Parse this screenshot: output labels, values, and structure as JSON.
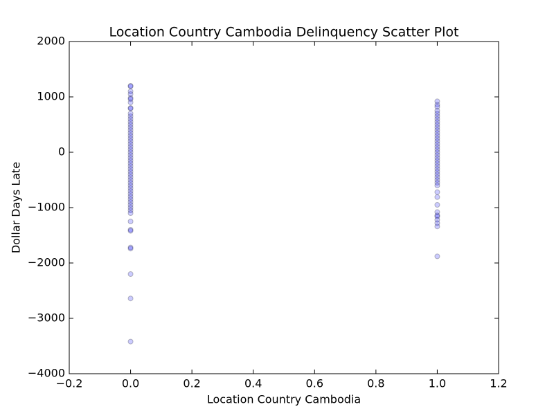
{
  "chart_data": {
    "type": "scatter",
    "title": "Location Country Cambodia Delinquency Scatter Plot",
    "xlabel": "Location Country Cambodia",
    "ylabel": "Dollar Days Late",
    "color": "#0000ff",
    "xlim": [
      -0.2,
      1.2
    ],
    "ylim": [
      -4000,
      2000
    ],
    "xticks": [
      {
        "value": -0.2,
        "label": "−0.2"
      },
      {
        "value": 0,
        "label": "0.0"
      },
      {
        "value": 0.2,
        "label": "0.2"
      },
      {
        "value": 0.4,
        "label": "0.4"
      },
      {
        "value": 0.6,
        "label": "0.6"
      },
      {
        "value": 0.8,
        "label": "0.8"
      },
      {
        "value": 1,
        "label": "1.0"
      },
      {
        "value": 1.2,
        "label": "1.2"
      }
    ],
    "yticks": [
      {
        "value": -4000,
        "label": "−4000"
      },
      {
        "value": -3000,
        "label": "−3000"
      },
      {
        "value": -2000,
        "label": "−2000"
      },
      {
        "value": -1000,
        "label": "−1000"
      },
      0,
      1000,
      2000
    ],
    "x": [
      0,
      0,
      0,
      0,
      0,
      0,
      0,
      0,
      0,
      0,
      0,
      0,
      0,
      0,
      0,
      0,
      0,
      0,
      0,
      0,
      0,
      0,
      0,
      0,
      0,
      0,
      0,
      0,
      0,
      0,
      0,
      0,
      0,
      0,
      0,
      0,
      0,
      0,
      0,
      0,
      0,
      0,
      0,
      0,
      0,
      0,
      0,
      0,
      0,
      0,
      0,
      0,
      0,
      0,
      1,
      1,
      1,
      1,
      1,
      1,
      1,
      1,
      1,
      1,
      1,
      1,
      1,
      1,
      1,
      1,
      1,
      1,
      1,
      1,
      1,
      1,
      1,
      1,
      1,
      1,
      1,
      1,
      1,
      1,
      1,
      1,
      1,
      1,
      1,
      1,
      1,
      1,
      1,
      1,
      1
    ],
    "values": [
      1200,
      1190,
      1100,
      1050,
      980,
      960,
      900,
      800,
      790,
      700,
      650,
      600,
      550,
      500,
      450,
      400,
      350,
      300,
      250,
      200,
      150,
      100,
      50,
      0,
      -50,
      -100,
      -150,
      -200,
      -250,
      -300,
      -350,
      -400,
      -450,
      -500,
      -550,
      -600,
      -650,
      -700,
      -750,
      -800,
      -850,
      -900,
      -950,
      -1000,
      -1050,
      -1100,
      -1250,
      -1400,
      -1420,
      -1720,
      -1740,
      -2200,
      -2640,
      -3420,
      920,
      860,
      820,
      750,
      700,
      650,
      600,
      550,
      500,
      450,
      400,
      350,
      300,
      250,
      200,
      150,
      100,
      50,
      0,
      -50,
      -100,
      -150,
      -200,
      -250,
      -300,
      -350,
      -400,
      -450,
      -500,
      -550,
      -600,
      -720,
      -810,
      -950,
      -1080,
      -1140,
      -1160,
      -1220,
      -1280,
      -1340,
      -1880
    ]
  }
}
